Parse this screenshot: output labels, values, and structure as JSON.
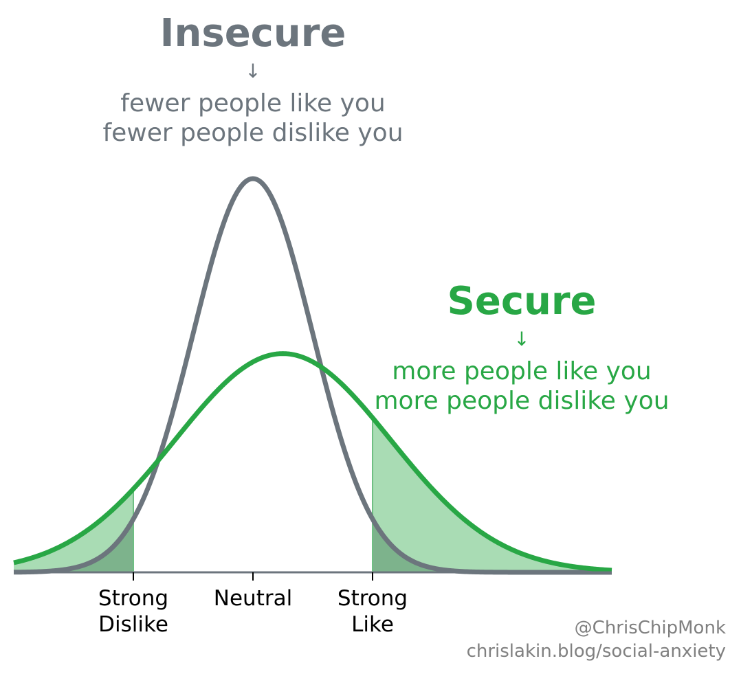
{
  "chart_data": {
    "type": "line",
    "x_tick_labels": [
      {
        "x": -1,
        "lines": [
          "Strong",
          "Dislike"
        ]
      },
      {
        "x": 0,
        "lines": [
          "Neutral"
        ]
      },
      {
        "x": 1,
        "lines": [
          "Strong"
        ]
      }
    ],
    "x_tick_labels_line2_last": "Like",
    "xlim": [
      -2,
      3
    ],
    "series": [
      {
        "name": "Insecure",
        "color": "#6c757d",
        "distribution": "normal",
        "mean": 0,
        "sd": 0.5
      },
      {
        "name": "Secure",
        "color": "#28a745",
        "distribution": "normal",
        "mean": 0.25,
        "sd": 0.9,
        "shaded_tails": {
          "below": -1,
          "above": 1,
          "fill": "#a9dcb4"
        }
      }
    ],
    "overlap_fill": "#7db38c",
    "annotations": [
      {
        "series": "Insecure",
        "title": "Insecure",
        "arrow": "↓",
        "lines": [
          "fewer people like you",
          "fewer people dislike you"
        ],
        "color": "#6c757d"
      },
      {
        "series": "Secure",
        "title": "Secure",
        "arrow": "↓",
        "lines": [
          "more people like you",
          "more people dislike you"
        ],
        "color": "#28a745"
      }
    ],
    "grid": false,
    "axes": {
      "y_visible": false,
      "x_spine": true
    }
  },
  "credits": {
    "handle": "@ChrisChipMonk",
    "url": "chrislakin.blog/social-anxiety",
    "color": "#808080"
  }
}
